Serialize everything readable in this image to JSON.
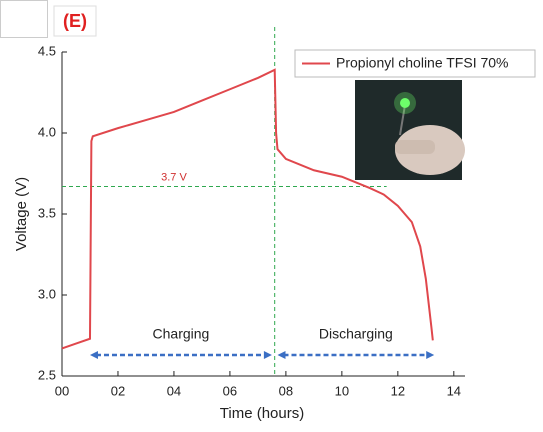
{
  "chart_data": {
    "type": "line",
    "panel_label": "(E)",
    "xlabel": "Time (hours)",
    "ylabel": "Voltage (V)",
    "xlim": [
      0,
      14.4
    ],
    "ylim": [
      2.5,
      4.5
    ],
    "xticks": [
      {
        "value": 0,
        "label": "00"
      },
      {
        "value": 2,
        "label": "02"
      },
      {
        "value": 4,
        "label": "04"
      },
      {
        "value": 6,
        "label": "06"
      },
      {
        "value": 8,
        "label": "08"
      },
      10,
      12,
      14
    ],
    "yticks": [
      2.5,
      {
        "value": 3,
        "label": "3.0"
      },
      3.5,
      {
        "value": 4,
        "label": "4.0"
      },
      4.5
    ],
    "series": [
      {
        "name": "Propionyl choline TFSI 70%",
        "color": "#e0474c",
        "x": [
          0,
          0.5,
          1.0,
          1.05,
          1.1,
          2,
          3,
          4,
          5,
          6,
          7,
          7.6,
          7.65,
          7.7,
          8,
          9,
          10,
          11,
          11.5,
          12,
          12.5,
          12.8,
          13,
          13.2,
          13.25
        ],
        "values": [
          2.67,
          2.7,
          2.73,
          3.95,
          3.98,
          4.03,
          4.08,
          4.13,
          4.2,
          4.27,
          4.34,
          4.39,
          4.0,
          3.9,
          3.84,
          3.77,
          3.73,
          3.66,
          3.62,
          3.55,
          3.45,
          3.3,
          3.1,
          2.8,
          2.72
        ]
      }
    ],
    "hline": {
      "value": 3.67,
      "label": "3.7 V",
      "color": "#2fa84f"
    },
    "vline": {
      "value": 7.6,
      "color": "#2fa84f"
    },
    "arrows": [
      {
        "label": "Charging",
        "x": [
          1.0,
          7.5
        ],
        "y": 2.63,
        "color": "#3b6fc4"
      },
      {
        "label": "Discharging",
        "x": [
          7.7,
          13.3
        ],
        "y": 2.63,
        "color": "#3b6fc4"
      }
    ]
  }
}
